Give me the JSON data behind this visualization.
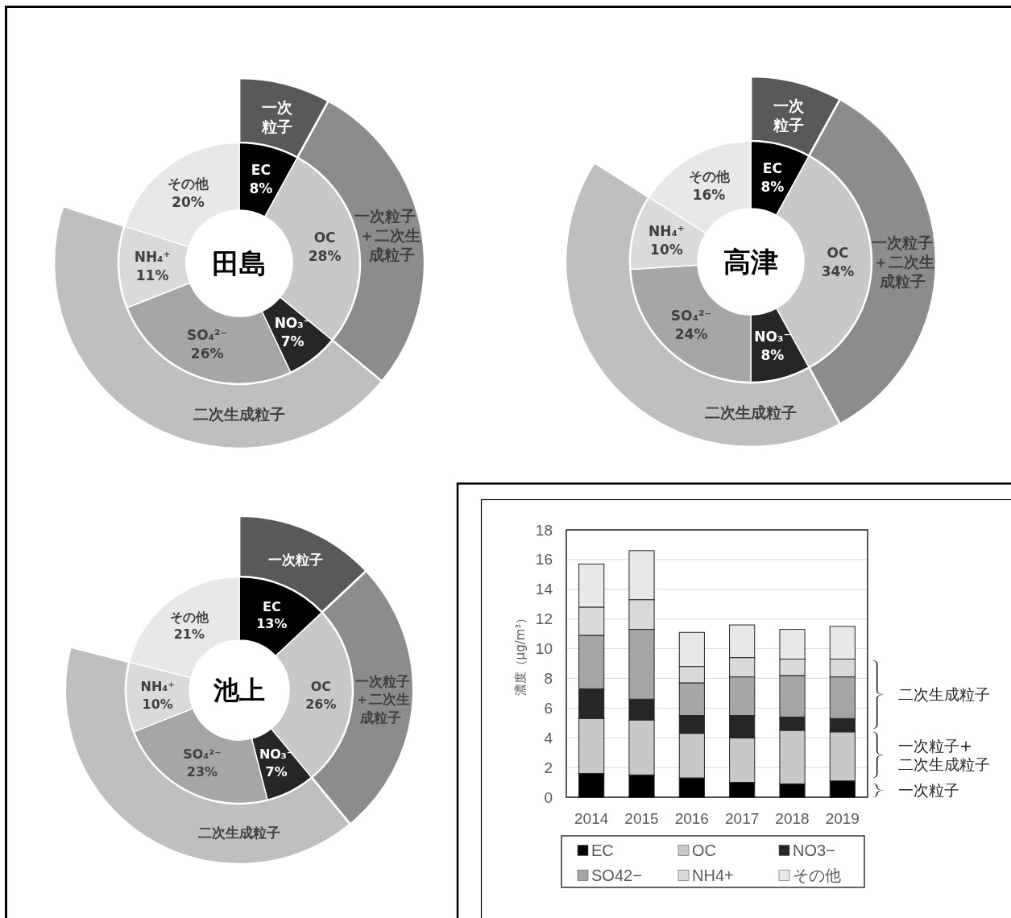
{
  "chart_data": [
    {
      "type": "donut",
      "title": "田島",
      "categories": [
        "EC",
        "OC",
        "NO₃⁻",
        "SO₄²⁻",
        "NH₄⁺",
        "その他"
      ],
      "values": [
        8,
        28,
        7,
        26,
        11,
        20
      ],
      "value_labels": [
        "8%",
        "28%",
        "7%",
        "26%",
        "11%",
        "20%"
      ],
      "colors": [
        "#000000",
        "#c8c8c8",
        "#262626",
        "#a6a6a6",
        "#dadada",
        "#e8e8e8"
      ]
    },
    {
      "type": "donut",
      "categories": [
        "一次粒子",
        "一次粒子＋二次生成粒子",
        "二次生成粒子",
        null
      ],
      "values": [
        8,
        28,
        44,
        20
      ],
      "colors": [
        "#595959",
        "#8c8c8c",
        "#bfbfbf",
        "#ffffff"
      ]
    },
    {
      "type": "donut",
      "title": "高津",
      "categories": [
        "EC",
        "OC",
        "NO₃⁻",
        "SO₄²⁻",
        "NH₄⁺",
        "その他"
      ],
      "values": [
        8,
        34,
        8,
        24,
        10,
        16
      ],
      "value_labels": [
        "8%",
        "34%",
        "8%",
        "24%",
        "10%",
        "16%"
      ],
      "colors": [
        "#000000",
        "#c8c8c8",
        "#262626",
        "#a6a6a6",
        "#dadada",
        "#e8e8e8"
      ]
    },
    {
      "type": "donut",
      "categories": [
        "一次粒子",
        "一次粒子＋二次生成粒子",
        "二次生成粒子",
        null
      ],
      "values": [
        8,
        34,
        42,
        16
      ],
      "colors": [
        "#595959",
        "#8c8c8c",
        "#bfbfbf",
        "#ffffff"
      ]
    },
    {
      "type": "donut",
      "title": "池上",
      "categories": [
        "EC",
        "OC",
        "NO₃⁻",
        "SO₄²⁻",
        "NH₄⁺",
        "その他"
      ],
      "values": [
        13,
        26,
        7,
        23,
        10,
        21
      ],
      "value_labels": [
        "13%",
        "26%",
        "7%",
        "23%",
        "10%",
        "21%"
      ],
      "colors": [
        "#000000",
        "#c8c8c8",
        "#262626",
        "#a6a6a6",
        "#dadada",
        "#e8e8e8"
      ]
    },
    {
      "type": "donut",
      "categories": [
        "一次粒子",
        "一次粒子＋二次生成粒子",
        "二次生成粒子",
        null
      ],
      "values": [
        13,
        26,
        40,
        21
      ],
      "colors": [
        "#595959",
        "#8c8c8c",
        "#bfbfbf",
        "#ffffff"
      ]
    },
    {
      "type": "bar",
      "stacked": true,
      "categories": [
        "2014",
        "2015",
        "2016",
        "2017",
        "2018",
        "2019"
      ],
      "ylabel": "濃度（μg/m³）",
      "ylim": [
        0,
        18
      ],
      "yticks": [
        0,
        2,
        4,
        6,
        8,
        10,
        12,
        14,
        16,
        18
      ],
      "grid": "y",
      "legend": "bottom",
      "series": [
        {
          "name": "EC",
          "color": "#000000",
          "values": [
            1.6,
            1.5,
            1.3,
            1.0,
            0.9,
            1.1
          ]
        },
        {
          "name": "OC",
          "color": "#c8c8c8",
          "values": [
            3.7,
            3.7,
            3.0,
            3.0,
            3.6,
            3.3
          ]
        },
        {
          "name": "NO3−",
          "color": "#262626",
          "values": [
            2.0,
            1.4,
            1.2,
            1.5,
            0.9,
            0.9
          ]
        },
        {
          "name": "SO42−",
          "color": "#a6a6a6",
          "values": [
            3.6,
            4.7,
            2.2,
            2.6,
            2.8,
            2.8
          ]
        },
        {
          "name": "NH4+",
          "color": "#dadada",
          "values": [
            1.9,
            2.0,
            1.1,
            1.3,
            1.1,
            1.2
          ]
        },
        {
          "name": "その他",
          "color": "#e8e8e8",
          "values": [
            2.9,
            3.3,
            2.3,
            2.2,
            2.0,
            2.2
          ]
        }
      ],
      "annotations": [
        "二次生成粒子",
        "一次粒子+二次生成粒子",
        "一次粒子"
      ]
    }
  ]
}
